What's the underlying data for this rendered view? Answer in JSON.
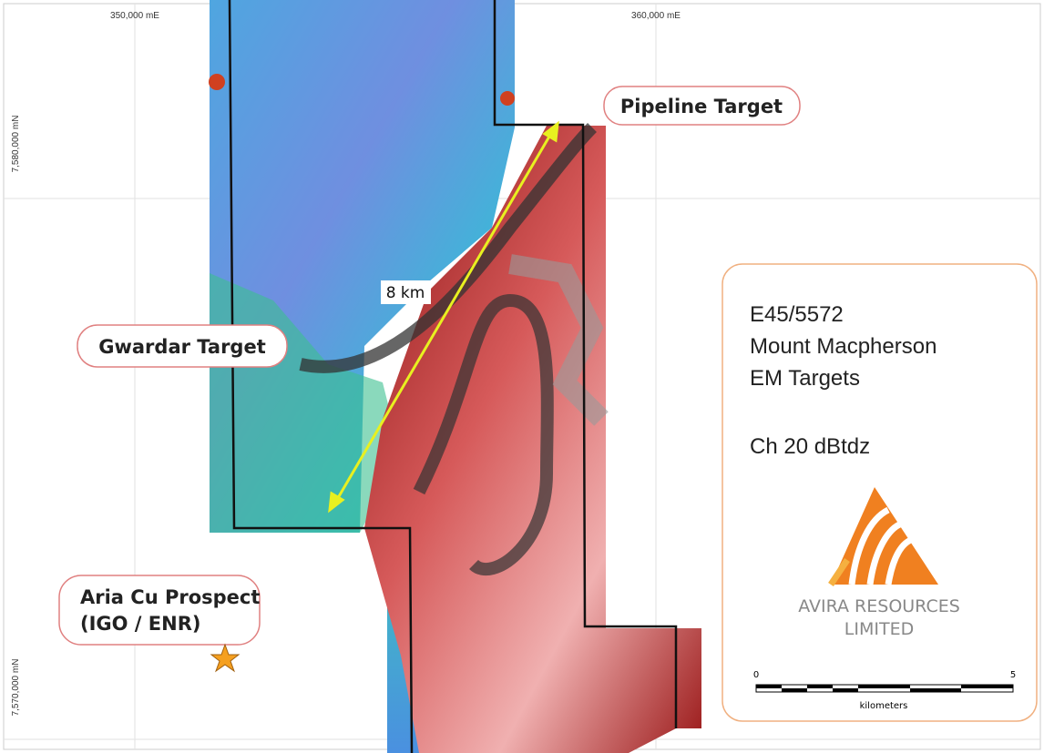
{
  "grid_labels": {
    "easting": [
      "350,000 mE",
      "360,000 mE"
    ],
    "northing": [
      "7,580,000 mN",
      "7,570,000 mN"
    ]
  },
  "callouts": {
    "pipeline": "Pipeline Target",
    "gwardar": "Gwardar Target",
    "aria": [
      "Aria Cu Prospect",
      "(IGO / ENR)"
    ]
  },
  "distance_label": "8 km",
  "legend": {
    "lines": [
      "E45/5572",
      "Mount Macpherson",
      "EM Targets"
    ],
    "channel": "Ch 20 dBtdz",
    "company": [
      "AVIRA RESOURCES",
      "LIMITED"
    ],
    "scale": {
      "start": "0",
      "end": "5",
      "unit": "kilometers"
    }
  }
}
